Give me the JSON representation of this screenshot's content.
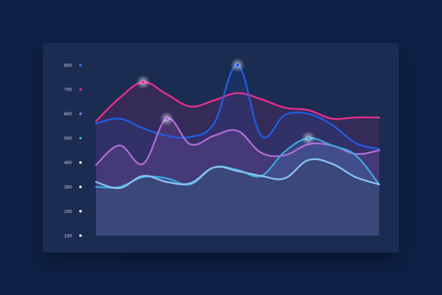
{
  "chart_data": {
    "type": "area",
    "title": "",
    "xlabel": "",
    "ylabel": "",
    "ylim": [
      100,
      800
    ],
    "y_ticks": [
      "800",
      "700",
      "600",
      "500",
      "400",
      "300",
      "200",
      "100"
    ],
    "y_tick_values": [
      800,
      700,
      600,
      500,
      400,
      300,
      200,
      100
    ],
    "y_tick_dot_colors": [
      "#3b82f6",
      "#ec2c8c",
      "#8a7ae6",
      "#39b6e6",
      "#ffffff",
      "#ffffff",
      "#ffffff",
      "#ffffff"
    ],
    "grid": false,
    "legend": "none",
    "x": [
      0,
      1,
      2,
      3,
      4,
      5,
      6,
      7,
      8,
      9,
      10,
      11,
      12
    ],
    "series": [
      {
        "key": "magenta",
        "color": "#ef2d8f",
        "values": [
          570,
          665,
          730,
          680,
          630,
          655,
          685,
          660,
          625,
          615,
          580,
          585,
          585
        ],
        "highlight_index": 2
      },
      {
        "key": "blue",
        "color": "#1e5fe6",
        "values": [
          560,
          580,
          540,
          510,
          505,
          560,
          800,
          510,
          595,
          600,
          555,
          480,
          455
        ],
        "highlight_index": 6
      },
      {
        "key": "lavender",
        "color": "#b36bd8",
        "values": [
          390,
          470,
          395,
          580,
          475,
          510,
          530,
          440,
          430,
          475,
          470,
          435,
          450
        ],
        "highlight_index": 3
      },
      {
        "key": "cyan",
        "color": "#3aa8dd",
        "values": [
          300,
          300,
          340,
          335,
          310,
          380,
          370,
          345,
          445,
          500,
          470,
          430,
          310
        ],
        "highlight_index": 9
      },
      {
        "key": "light-blue",
        "color": "#8cc4f2",
        "values": [
          320,
          295,
          345,
          320,
          315,
          380,
          365,
          345,
          335,
          410,
          395,
          340,
          310
        ],
        "highlight_index": null
      }
    ],
    "area_fill": "#3b4679"
  }
}
